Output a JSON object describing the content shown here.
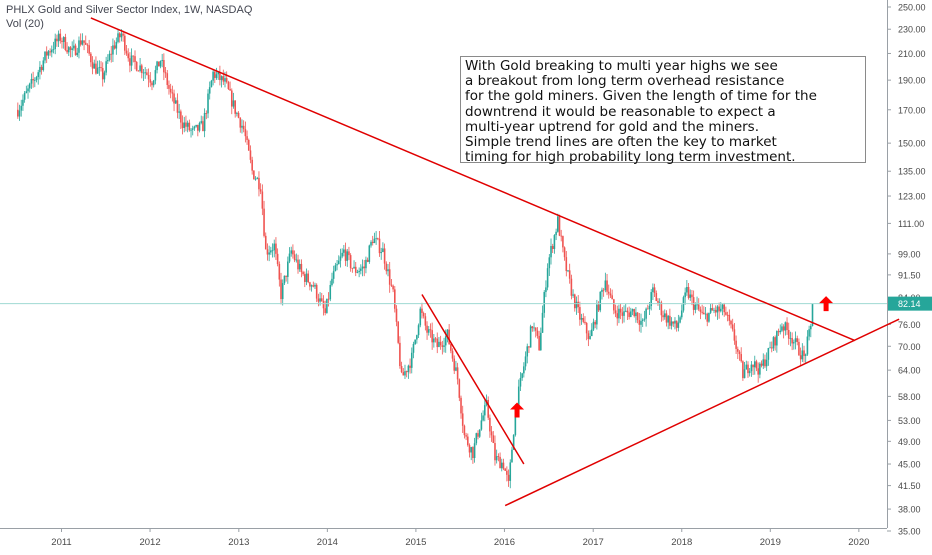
{
  "header": {
    "title": "PHLX Gold and Silver Sector Index, 1W, NASDAQ",
    "indicator": "Vol (20)"
  },
  "annotation": {
    "lines": [
      "With Gold breaking to multi year highs we see",
      "a breakout from long term overhead resistance",
      "for the gold miners. Given the length of time for the",
      "downtrend it would be reasonable to expect a",
      "multi-year uptrend for gold and the miners.",
      "Simple trend lines are often the key to market",
      "timing for high probability long term investment."
    ]
  },
  "colors": {
    "up": "#26a69a",
    "down": "#ef5350",
    "trendline": "#e00000",
    "arrow": "#ff0000",
    "price_line": "#9fd9d3",
    "price_label_bg": "#26a69a",
    "axis_text": "#4a4a4a",
    "axis_line": "#9aa0a6"
  },
  "icons": [
    "up-arrow-icon",
    "up-arrow-icon"
  ],
  "chart_data": {
    "type": "candlestick",
    "title": "PHLX Gold and Silver Sector Index, 1W, NASDAQ",
    "y_scale": "log",
    "y_ticks": [
      "250.00",
      "230.00",
      "210.00",
      "190.00",
      "170.00",
      "150.00",
      "135.00",
      "123.00",
      "111.00",
      "99.00",
      "91.50",
      "84.00",
      "76.00",
      "70.00",
      "64.00",
      "58.00",
      "53.00",
      "49.00",
      "45.00",
      "41.50",
      "38.00",
      "35.00"
    ],
    "x_ticks": [
      "2011",
      "2012",
      "2013",
      "2014",
      "2015",
      "2016",
      "2017",
      "2018",
      "2019",
      "2020"
    ],
    "last_price": "82.14",
    "weekly_close_path": [
      [
        "2010-07-05",
        170
      ],
      [
        "2010-09-15",
        192
      ],
      [
        "2010-11-01",
        210
      ],
      [
        "2010-12-27",
        223
      ],
      [
        "2011-02-14",
        210
      ],
      [
        "2011-03-28",
        222
      ],
      [
        "2011-05-16",
        200
      ],
      [
        "2011-06-20",
        193
      ],
      [
        "2011-08-01",
        215
      ],
      [
        "2011-09-05",
        226
      ],
      [
        "2011-10-10",
        205
      ],
      [
        "2011-12-05",
        198
      ],
      [
        "2012-01-09",
        190
      ],
      [
        "2012-02-13",
        205
      ],
      [
        "2012-03-26",
        180
      ],
      [
        "2012-05-14",
        162
      ],
      [
        "2012-06-25",
        156
      ],
      [
        "2012-08-06",
        160
      ],
      [
        "2012-09-17",
        195
      ],
      [
        "2012-11-05",
        188
      ],
      [
        "2012-12-17",
        170
      ],
      [
        "2013-01-21",
        158
      ],
      [
        "2013-02-25",
        135
      ],
      [
        "2013-04-01",
        128
      ],
      [
        "2013-04-22",
        100
      ],
      [
        "2013-05-27",
        102
      ],
      [
        "2013-06-24",
        85
      ],
      [
        "2013-08-05",
        100
      ],
      [
        "2013-09-16",
        92
      ],
      [
        "2013-11-04",
        88
      ],
      [
        "2013-12-23",
        79
      ],
      [
        "2014-01-20",
        90
      ],
      [
        "2014-03-10",
        100
      ],
      [
        "2014-04-21",
        93
      ],
      [
        "2014-06-02",
        94
      ],
      [
        "2014-07-07",
        105
      ],
      [
        "2014-08-18",
        100
      ],
      [
        "2014-09-29",
        85
      ],
      [
        "2014-11-03",
        62
      ],
      [
        "2014-12-15",
        67
      ],
      [
        "2015-01-19",
        80
      ],
      [
        "2015-02-16",
        74
      ],
      [
        "2015-03-30",
        70
      ],
      [
        "2015-05-11",
        73
      ],
      [
        "2015-06-22",
        62
      ],
      [
        "2015-07-20",
        50
      ],
      [
        "2015-08-24",
        47
      ],
      [
        "2015-09-21",
        52
      ],
      [
        "2015-10-19",
        56
      ],
      [
        "2015-11-23",
        46
      ],
      [
        "2015-12-28",
        45
      ],
      [
        "2016-01-18",
        41.5
      ],
      [
        "2016-02-15",
        55
      ],
      [
        "2016-03-21",
        65
      ],
      [
        "2016-04-25",
        76
      ],
      [
        "2016-05-23",
        70
      ],
      [
        "2016-06-27",
        95
      ],
      [
        "2016-08-08",
        112
      ],
      [
        "2016-09-05",
        96
      ],
      [
        "2016-10-10",
        84
      ],
      [
        "2016-11-07",
        78
      ],
      [
        "2016-12-19",
        72
      ],
      [
        "2017-01-23",
        82
      ],
      [
        "2017-02-20",
        90
      ],
      [
        "2017-03-27",
        80
      ],
      [
        "2017-05-08",
        79
      ],
      [
        "2017-06-19",
        80
      ],
      [
        "2017-07-24",
        76
      ],
      [
        "2017-09-04",
        86
      ],
      [
        "2017-10-16",
        79
      ],
      [
        "2017-12-11",
        75
      ],
      [
        "2018-01-22",
        86
      ],
      [
        "2018-02-19",
        82
      ],
      [
        "2018-04-02",
        78
      ],
      [
        "2018-05-14",
        80
      ],
      [
        "2018-06-25",
        80
      ],
      [
        "2018-08-06",
        72
      ],
      [
        "2018-09-10",
        63
      ],
      [
        "2018-10-15",
        66
      ],
      [
        "2018-11-19",
        64
      ],
      [
        "2019-01-07",
        70
      ],
      [
        "2019-02-18",
        76
      ],
      [
        "2019-03-25",
        73
      ],
      [
        "2019-04-29",
        69
      ],
      [
        "2019-05-20",
        67
      ],
      [
        "2019-06-17",
        75
      ],
      [
        "2019-06-24",
        82.14
      ]
    ],
    "trendlines": [
      {
        "name": "downtrend-resistance",
        "points": [
          [
            "2011-05-02",
            240
          ],
          [
            "2019-12-16",
            71.5
          ]
        ]
      },
      {
        "name": "2016-breakout-line",
        "points": [
          [
            "2015-01-26",
            85
          ],
          [
            "2016-03-21",
            45
          ]
        ]
      },
      {
        "name": "uptrend-support",
        "points": [
          [
            "2016-01-04",
            38.5
          ],
          [
            "2020-06-15",
            77.5
          ]
        ]
      }
    ],
    "arrows": [
      {
        "date": "2016-02-22",
        "price": 55
      },
      {
        "date": "2019-08-19",
        "price": 82
      }
    ],
    "xlabel": "",
    "ylabel": "",
    "legend": "none",
    "grid": false
  }
}
